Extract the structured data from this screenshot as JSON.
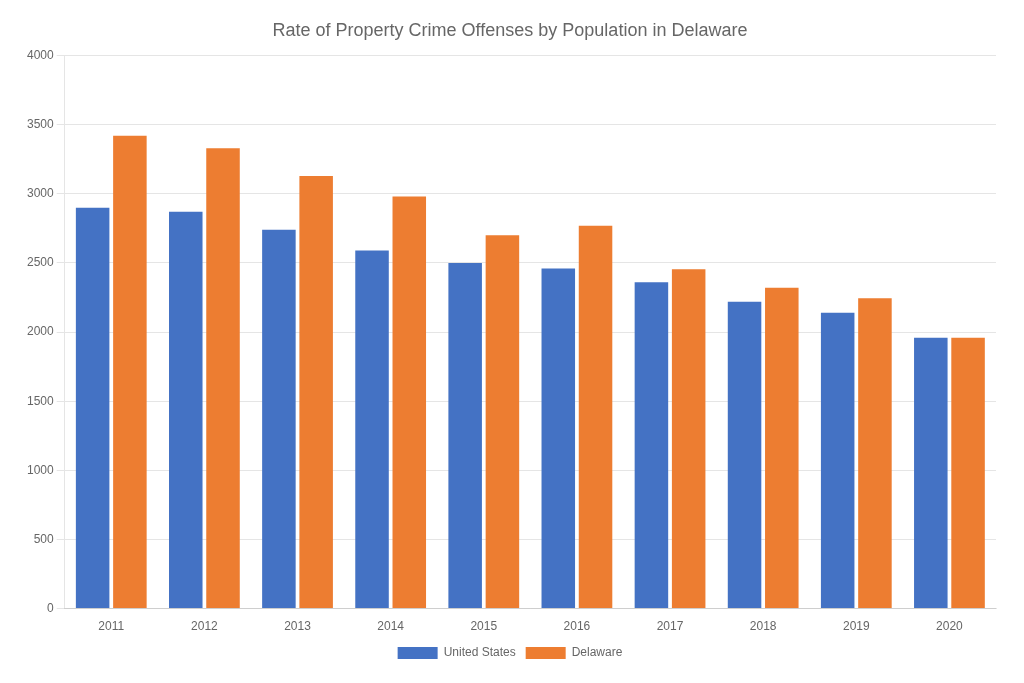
{
  "chart_data": {
    "type": "bar",
    "title": "Rate of Property Crime Offenses by Population in Delaware",
    "categories": [
      "2011",
      "2012",
      "2013",
      "2014",
      "2015",
      "2016",
      "2017",
      "2018",
      "2019",
      "2020"
    ],
    "series": [
      {
        "name": "United States",
        "color": "#4472C4",
        "values": [
          2900,
          2870,
          2740,
          2590,
          2500,
          2460,
          2360,
          2220,
          2140,
          1960
        ]
      },
      {
        "name": "Delaware",
        "color": "#ED7D31",
        "values": [
          3420,
          3330,
          3130,
          2980,
          2700,
          2770,
          2455,
          2320,
          2245,
          1960
        ]
      }
    ],
    "ylim": [
      0,
      4000
    ],
    "yticks": [
      0,
      500,
      1000,
      1500,
      2000,
      2500,
      3000,
      3500,
      4000
    ],
    "grid": true,
    "legend": "bottom"
  }
}
